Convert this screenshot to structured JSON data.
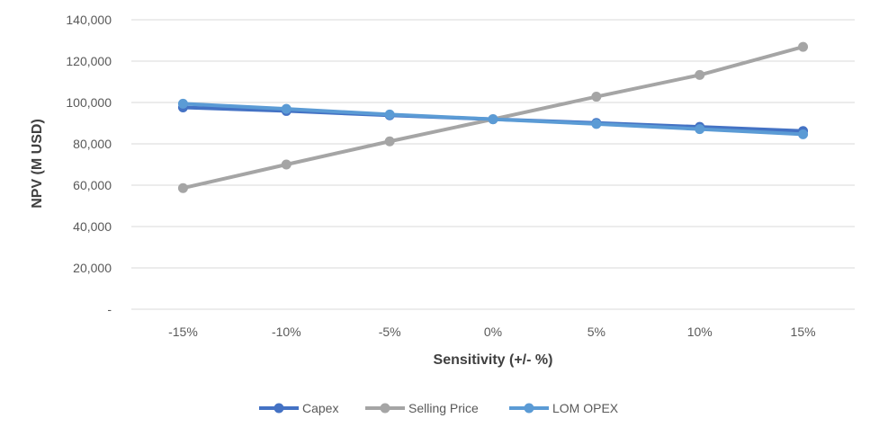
{
  "chart_data": {
    "type": "line",
    "title": "",
    "xlabel": "Sensitivity (+/- %)",
    "ylabel": "NPV (M USD)",
    "categories": [
      "-15%",
      "-10%",
      "-5%",
      "0%",
      "5%",
      "10%",
      "15%"
    ],
    "ylim": [
      0,
      140000
    ],
    "yticks": [
      0,
      20000,
      40000,
      60000,
      80000,
      100000,
      120000,
      140000
    ],
    "ytick_labels": [
      "-",
      "20,000",
      "40,000",
      "60,000",
      "80,000",
      "100,000",
      "120,000",
      "140,000"
    ],
    "grid": true,
    "legend_position": "bottom",
    "series": [
      {
        "name": "Capex",
        "color": "#4472C4",
        "values": [
          97600,
          95900,
          93800,
          91900,
          90100,
          88200,
          86200
        ]
      },
      {
        "name": "Selling Price",
        "color": "#A5A5A5",
        "values": [
          58600,
          70000,
          81200,
          91900,
          102800,
          113300,
          126900
        ]
      },
      {
        "name": "LOM OPEX",
        "color": "#5B9BD5",
        "values": [
          99400,
          96900,
          94200,
          91900,
          89600,
          87100,
          84600
        ]
      }
    ]
  }
}
